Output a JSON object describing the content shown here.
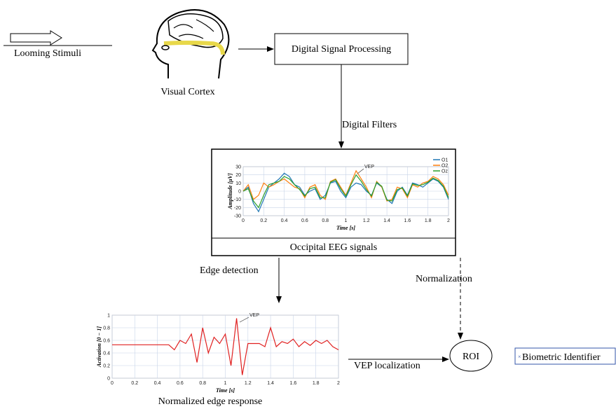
{
  "diagram": {
    "input": "Looming Stimuli",
    "cortex": "Visual Cortex",
    "dsp": "Digital Signal Processing",
    "filters": "Digital Filters",
    "eeg_caption": "Occipital EEG signals",
    "edge_detection": "Edge detection",
    "normalization": "Normalization",
    "edge_caption": "Normalized edge response",
    "vep_localization": "VEP localization",
    "roi": "ROI",
    "output": "Biometric Identifier"
  },
  "chart_data": [
    {
      "type": "line",
      "xlabel": "Time [s]",
      "ylabel": "Amplitude [μV]",
      "annotation": "VEP",
      "grid": true,
      "legend": "top-right",
      "x": [
        0,
        0.05,
        0.1,
        0.15,
        0.2,
        0.25,
        0.3,
        0.35,
        0.4,
        0.45,
        0.5,
        0.55,
        0.6,
        0.65,
        0.7,
        0.75,
        0.8,
        0.85,
        0.9,
        0.95,
        1,
        1.05,
        1.1,
        1.15,
        1.2,
        1.25,
        1.3,
        1.35,
        1.4,
        1.45,
        1.5,
        1.55,
        1.6,
        1.65,
        1.7,
        1.75,
        1.8,
        1.85,
        1.9,
        1.95,
        2
      ],
      "series": [
        {
          "name": "O1",
          "color": "#1f77b4",
          "values": [
            0,
            5,
            -15,
            -25,
            -10,
            5,
            10,
            15,
            22,
            18,
            8,
            5,
            -5,
            0,
            3,
            -10,
            -5,
            10,
            12,
            0,
            -8,
            5,
            10,
            8,
            0,
            -5,
            10,
            5,
            -10,
            -15,
            0,
            5,
            -5,
            10,
            8,
            5,
            10,
            15,
            12,
            5,
            -10
          ]
        },
        {
          "name": "O2",
          "color": "#ff7f0e",
          "values": [
            0,
            8,
            -10,
            -5,
            10,
            5,
            8,
            12,
            15,
            10,
            5,
            3,
            -8,
            5,
            8,
            -5,
            -10,
            12,
            15,
            5,
            -5,
            10,
            25,
            15,
            5,
            -8,
            12,
            5,
            -12,
            -10,
            5,
            3,
            -8,
            8,
            5,
            10,
            12,
            18,
            15,
            8,
            -5
          ]
        },
        {
          "name": "Oz",
          "color": "#2ca02c",
          "values": [
            0,
            3,
            -12,
            -20,
            -5,
            8,
            10,
            12,
            18,
            15,
            8,
            2,
            -6,
            3,
            5,
            -8,
            -8,
            11,
            14,
            3,
            -6,
            8,
            20,
            12,
            2,
            -6,
            11,
            6,
            -11,
            -12,
            2,
            4,
            -6,
            9,
            7,
            8,
            11,
            16,
            13,
            6,
            -8
          ]
        }
      ],
      "xlim": [
        0,
        2
      ],
      "xticks": [
        0,
        0.2,
        0.4,
        0.6,
        0.8,
        1,
        1.2,
        1.4,
        1.6,
        1.8,
        2
      ],
      "ylim": [
        -30,
        30
      ],
      "yticks": [
        -30,
        -20,
        -10,
        0,
        10,
        20,
        30
      ]
    },
    {
      "type": "line",
      "xlabel": "Time [s]",
      "ylabel": "Activation [0 − 1]",
      "annotation": "VEP",
      "grid": true,
      "color": "#e02020",
      "x": [
        0,
        0.05,
        0.1,
        0.15,
        0.2,
        0.25,
        0.3,
        0.35,
        0.4,
        0.45,
        0.5,
        0.55,
        0.6,
        0.65,
        0.7,
        0.75,
        0.8,
        0.85,
        0.9,
        0.95,
        1,
        1.05,
        1.1,
        1.15,
        1.2,
        1.25,
        1.3,
        1.35,
        1.4,
        1.45,
        1.5,
        1.55,
        1.6,
        1.65,
        1.7,
        1.75,
        1.8,
        1.85,
        1.9,
        1.95,
        2
      ],
      "values": [
        0.53,
        0.53,
        0.53,
        0.53,
        0.53,
        0.53,
        0.53,
        0.53,
        0.53,
        0.53,
        0.53,
        0.45,
        0.6,
        0.55,
        0.7,
        0.25,
        0.8,
        0.4,
        0.65,
        0.55,
        0.7,
        0.2,
        0.95,
        0.05,
        0.55,
        0.55,
        0.55,
        0.5,
        0.8,
        0.5,
        0.58,
        0.55,
        0.62,
        0.5,
        0.58,
        0.52,
        0.6,
        0.55,
        0.6,
        0.5,
        0.45
      ],
      "xlim": [
        0,
        2
      ],
      "xticks": [
        0,
        0.2,
        0.4,
        0.6,
        0.8,
        1,
        1.2,
        1.4,
        1.6,
        1.8,
        2
      ],
      "ylim": [
        0,
        1
      ],
      "yticks": [
        0,
        0.2,
        0.4,
        0.6,
        0.8,
        1
      ]
    }
  ]
}
